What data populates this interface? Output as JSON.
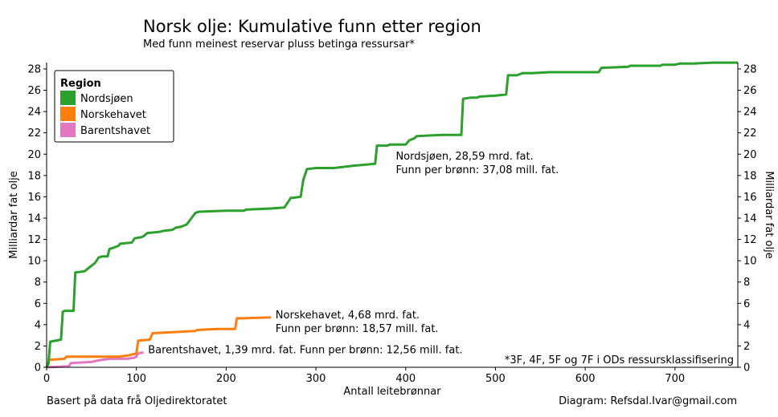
{
  "chart_data": {
    "type": "line",
    "title": "Norsk olje: Kumulative funn etter region",
    "subtitle": "Med funn meinest reservar pluss betinga ressursar*",
    "xlabel": "Antall leitebrønnar",
    "ylabel": "Milliardar fat olje",
    "ylabel_right": "Milliardar fat olje",
    "xlim": [
      0,
      770
    ],
    "ylim": [
      0,
      28.6
    ],
    "xticks": [
      0,
      100,
      200,
      300,
      400,
      500,
      600,
      700
    ],
    "yticks": [
      0,
      2,
      4,
      6,
      8,
      10,
      12,
      14,
      16,
      18,
      20,
      22,
      24,
      26,
      28
    ],
    "grid": false,
    "legend": {
      "title": "Region",
      "placement": "top-left",
      "entries": [
        "Nordsjøen",
        "Norskehavet",
        "Barentshavet"
      ]
    },
    "series": [
      {
        "name": "Nordsjøen",
        "color": "#2ca02c",
        "x": [
          0,
          2,
          4,
          16,
          18,
          20,
          30,
          32,
          42,
          45,
          54,
          58,
          62,
          68,
          70,
          74,
          80,
          82,
          95,
          98,
          105,
          108,
          112,
          125,
          130,
          140,
          144,
          150,
          156,
          164,
          166,
          170,
          200,
          220,
          222,
          250,
          265,
          272,
          274,
          283,
          286,
          290,
          300,
          320,
          330,
          340,
          352,
          366,
          368,
          380,
          382,
          400,
          404,
          410,
          412,
          440,
          462,
          464,
          472,
          480,
          482,
          500,
          512,
          514,
          524,
          530,
          540,
          560,
          585,
          615,
          618,
          648,
          650,
          684,
          686,
          700,
          705,
          720,
          742,
          770
        ],
        "y": [
          0,
          0.3,
          2.4,
          2.6,
          5.2,
          5.3,
          5.3,
          8.9,
          9.0,
          9.2,
          9.8,
          10.3,
          10.4,
          10.4,
          11.1,
          11.2,
          11.4,
          11.6,
          11.7,
          12.1,
          12.2,
          12.3,
          12.6,
          12.7,
          12.8,
          12.9,
          13.1,
          13.2,
          13.4,
          14.3,
          14.5,
          14.6,
          14.7,
          14.7,
          14.8,
          14.9,
          15.0,
          15.9,
          15.9,
          16.0,
          17.6,
          18.6,
          18.7,
          18.7,
          18.8,
          18.9,
          19.0,
          19.1,
          20.8,
          20.8,
          20.9,
          20.9,
          21.3,
          21.5,
          21.7,
          21.8,
          21.8,
          25.2,
          25.3,
          25.3,
          25.4,
          25.5,
          25.6,
          27.4,
          27.4,
          27.6,
          27.6,
          27.7,
          27.7,
          27.7,
          28.1,
          28.2,
          28.3,
          28.3,
          28.4,
          28.4,
          28.5,
          28.5,
          28.59,
          28.59
        ]
      },
      {
        "name": "Norskehavet",
        "color": "#ff7f0e",
        "x": [
          0,
          3,
          20,
          22,
          50,
          80,
          90,
          95,
          100,
          102,
          115,
          118,
          140,
          165,
          168,
          190,
          210,
          212,
          220,
          250
        ],
        "y": [
          0,
          0.7,
          0.8,
          1.0,
          1.0,
          1.0,
          1.1,
          1.2,
          1.3,
          2.5,
          2.6,
          3.2,
          3.3,
          3.4,
          3.5,
          3.6,
          3.6,
          4.6,
          4.6,
          4.68
        ]
      },
      {
        "name": "Barentshavet",
        "color": "#e377c2",
        "x": [
          0,
          25,
          27,
          50,
          55,
          70,
          90,
          98,
          100,
          102,
          108
        ],
        "y": [
          0,
          0.1,
          0.4,
          0.5,
          0.6,
          0.8,
          0.8,
          0.9,
          1.0,
          1.3,
          1.39
        ]
      }
    ],
    "annotations": [
      {
        "series": "Nordsjøen",
        "x": 389,
        "y": 19.5,
        "lines": [
          "Nordsjøen, 28,59 mrd. fat.",
          "Funn per brønn: 37,08 mill. fat."
        ]
      },
      {
        "series": "Norskehavet",
        "x": 255,
        "y": 4.6,
        "lines": [
          "Norskehavet, 4,68 mrd. fat.",
          "Funn per brønn: 18,57 mill. fat."
        ]
      },
      {
        "series": "Barentshavet",
        "x": 113,
        "y": 1.3,
        "lines": [
          "Barentshavet, 1,39 mrd. fat. Funn per brønn: 12,56 mill. fat."
        ]
      }
    ],
    "footnote": "*3F, 4F, 5F og 7F i ODs ressursklassifisering",
    "source_left": "Basert på data frå Oljedirektoratet",
    "source_right": "Diagram: Refsdal.Ivar@gmail.com"
  }
}
